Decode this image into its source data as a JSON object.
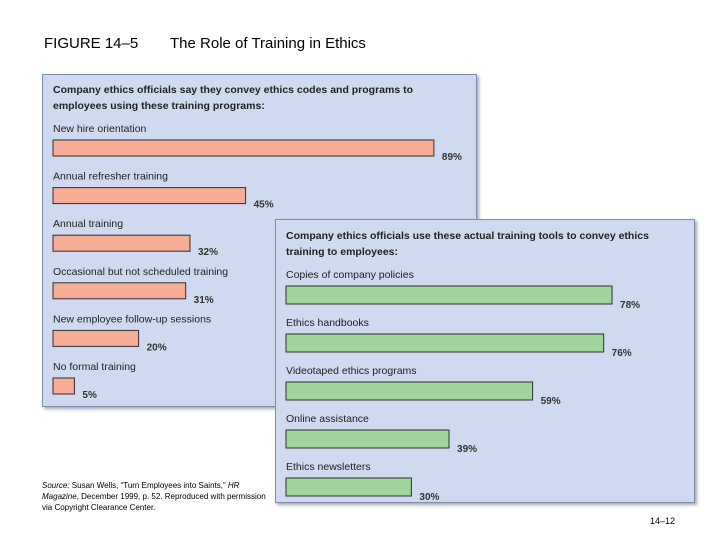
{
  "figure": {
    "label": "FIGURE 14–5",
    "title": "The Role of Training in Ethics"
  },
  "chart_data": [
    {
      "type": "bar",
      "orientation": "horizontal",
      "title": "Company ethics officials say they convey ethics codes and programs to employees using these training programs:",
      "title_lines": [
        "Company ethics officials say they convey ethics codes and programs to",
        "employees using these training programs:"
      ],
      "categories": [
        "New hire orientation",
        "Annual refresher training",
        "Annual training",
        "Occasional but not scheduled training",
        "New employee follow-up sessions",
        "No formal training"
      ],
      "values": [
        89,
        45,
        32,
        31,
        20,
        5
      ],
      "value_labels": [
        "89%",
        "45%",
        "32%",
        "31%",
        "20%",
        "5%"
      ],
      "unit": "%",
      "xlim": [
        0,
        100
      ],
      "bar_color": "#f7ad95",
      "panel_color": "#cfdaf0"
    },
    {
      "type": "bar",
      "orientation": "horizontal",
      "title": "Company ethics officials use these actual training tools to convey ethics training to employees:",
      "title_lines": [
        "Company ethics officials use these actual training tools to convey ethics",
        "training to employees:"
      ],
      "categories": [
        "Copies of company policies",
        "Ethics handbooks",
        "Videotaped ethics programs",
        "Online assistance",
        "Ethics newsletters"
      ],
      "values": [
        78,
        76,
        59,
        39,
        30
      ],
      "value_labels": [
        "78%",
        "76%",
        "59%",
        "39%",
        "30%"
      ],
      "unit": "%",
      "xlim": [
        0,
        100
      ],
      "bar_color": "#9fd49b",
      "panel_color": "#cfdaf0"
    }
  ],
  "source": {
    "prefix": "Source:",
    "text_before": " Susan Wells, “Turn Employees into Saints,”",
    "magazine": "HR Magazine",
    "text_after": ", December 1999, p. 52. Reproduced with permission via Copyright Clearance Center."
  },
  "page_number": "14–12"
}
